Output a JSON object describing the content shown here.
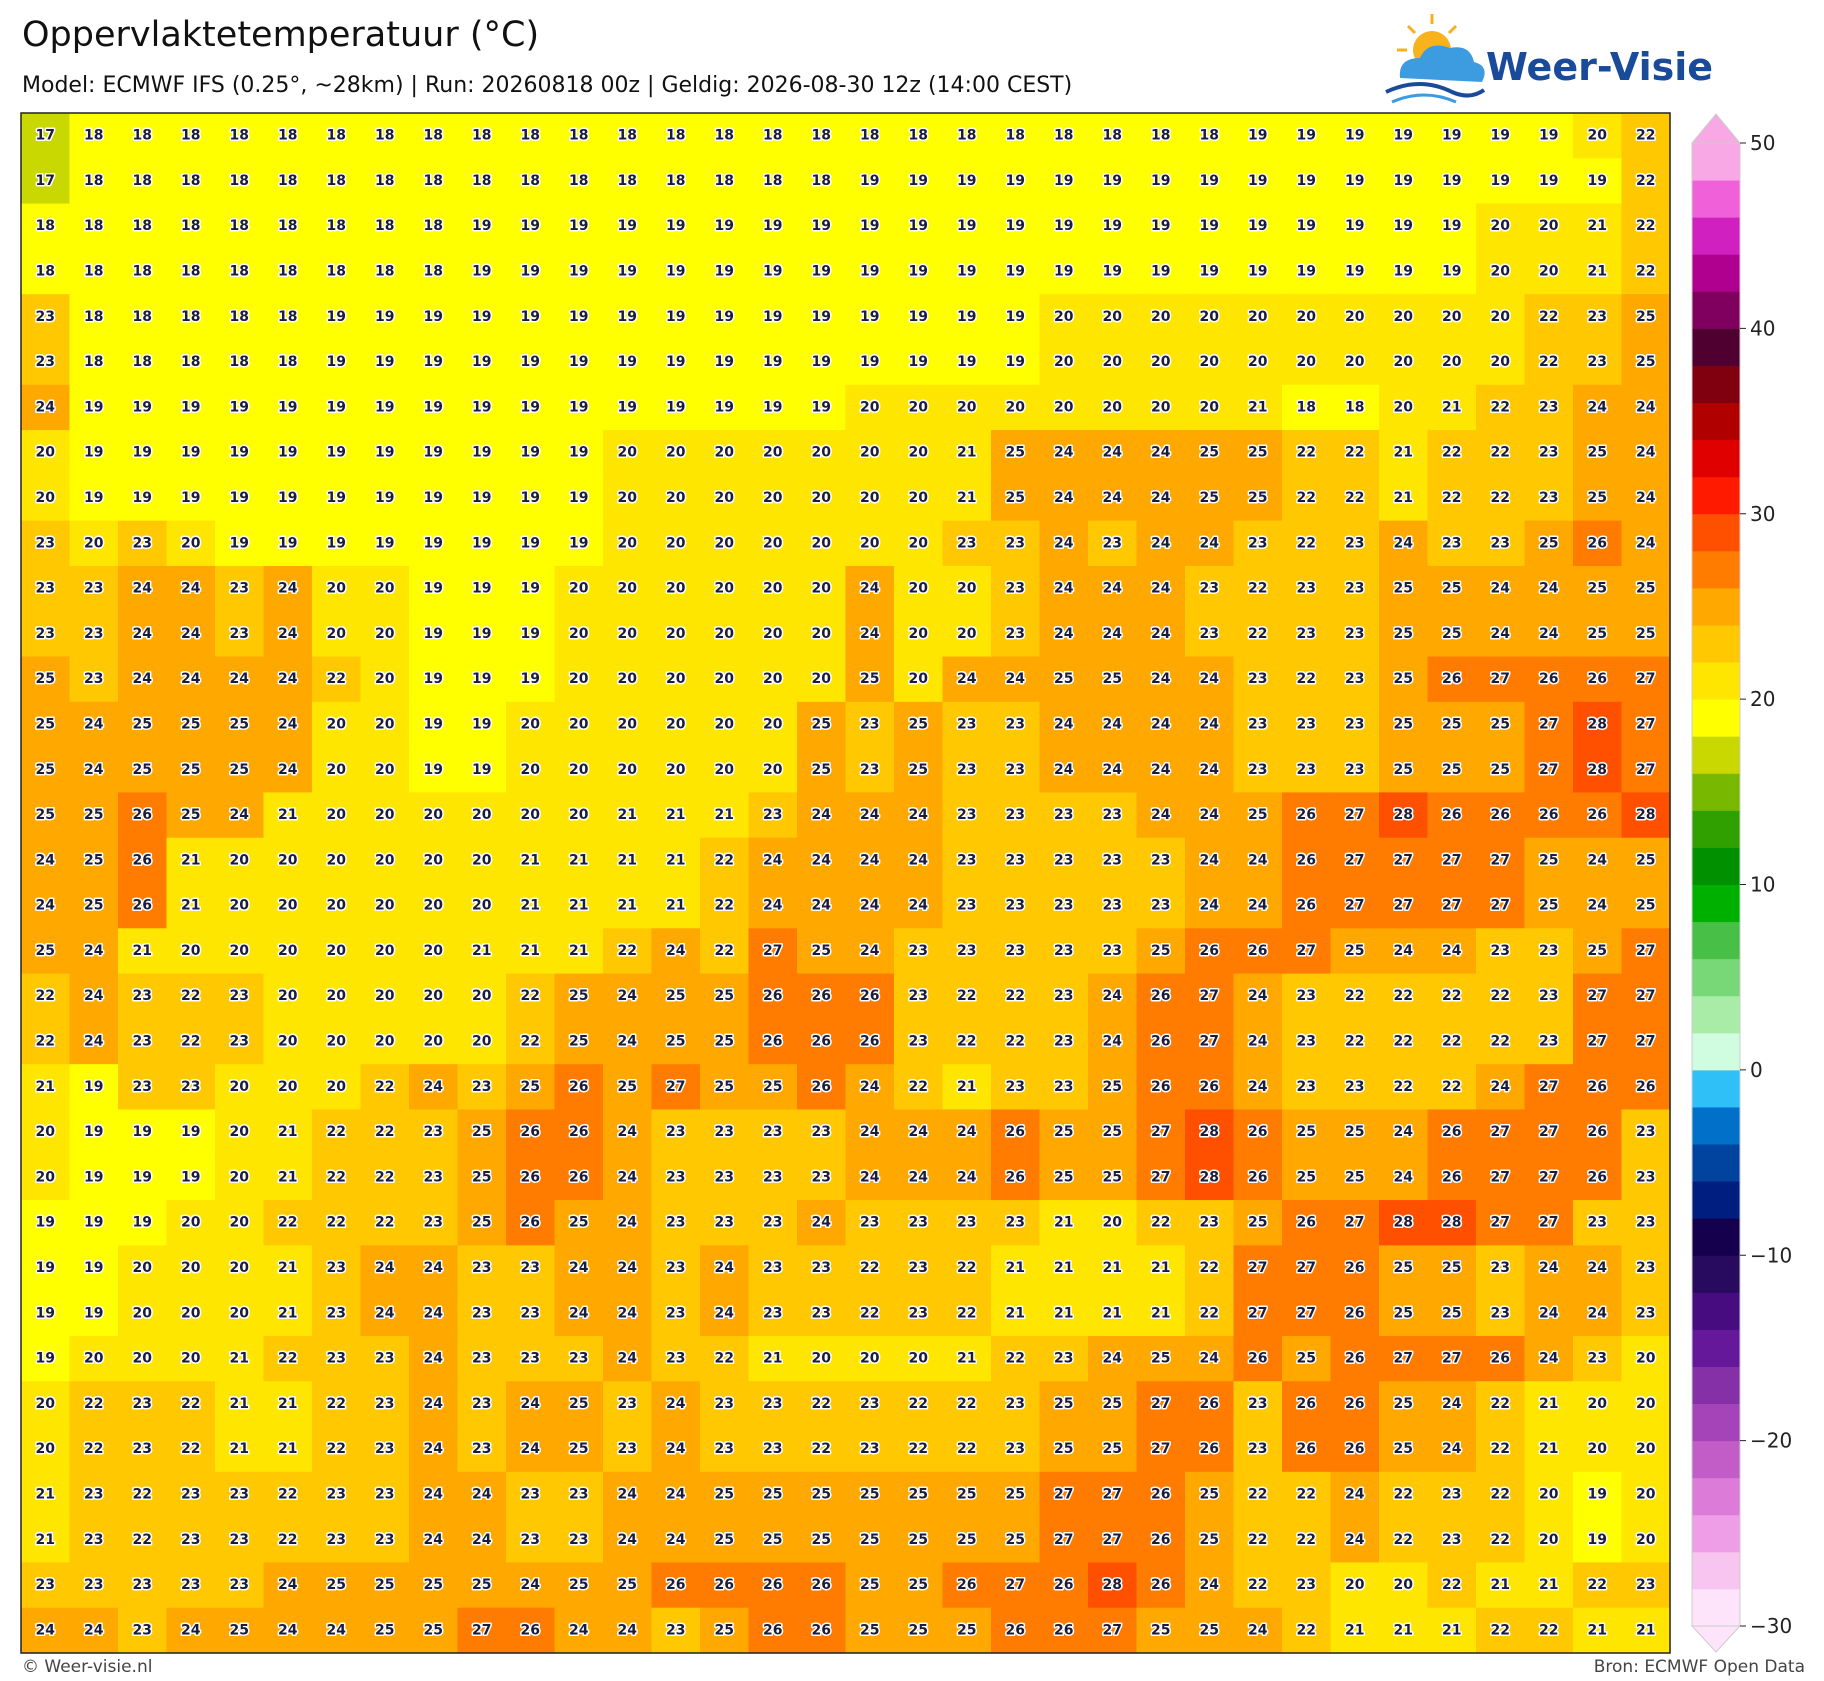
{
  "header": {
    "title": "Oppervlaktetemperatuur (°C)",
    "subtitle": "Model: ECMWF IFS (0.25°, ~28km)  |  Run: 20260818 00z  |  Geldig: 2026-08-30 12z (14:00 CEST)"
  },
  "logo": "Weer-Visie",
  "map": {
    "rows": [
      [
        17,
        18,
        18,
        18,
        18,
        18,
        18,
        18,
        18,
        18,
        18,
        18,
        18,
        18,
        18,
        18,
        18,
        18,
        18,
        18,
        18,
        18,
        18,
        18,
        18,
        19,
        19,
        19,
        19,
        19,
        19,
        19,
        20,
        22
      ],
      [
        17,
        18,
        18,
        18,
        18,
        18,
        18,
        18,
        18,
        18,
        18,
        18,
        18,
        18,
        18,
        18,
        18,
        19,
        19,
        19,
        19,
        19,
        19,
        19,
        19,
        19,
        19,
        19,
        19,
        19,
        19,
        19,
        19,
        22
      ],
      [
        18,
        18,
        18,
        18,
        18,
        18,
        18,
        18,
        18,
        19,
        19,
        19,
        19,
        19,
        19,
        19,
        19,
        19,
        19,
        19,
        19,
        19,
        19,
        19,
        19,
        19,
        19,
        19,
        19,
        19,
        20,
        20,
        21,
        22
      ],
      [
        18,
        18,
        18,
        18,
        18,
        18,
        18,
        18,
        18,
        19,
        19,
        19,
        19,
        19,
        19,
        19,
        19,
        19,
        19,
        19,
        19,
        19,
        19,
        19,
        19,
        19,
        19,
        19,
        19,
        19,
        20,
        20,
        21,
        22
      ],
      [
        23,
        18,
        18,
        18,
        18,
        18,
        19,
        19,
        19,
        19,
        19,
        19,
        19,
        19,
        19,
        19,
        19,
        19,
        19,
        19,
        19,
        20,
        20,
        20,
        20,
        20,
        20,
        20,
        20,
        20,
        20,
        22,
        23,
        25
      ],
      [
        23,
        18,
        18,
        18,
        18,
        18,
        19,
        19,
        19,
        19,
        19,
        19,
        19,
        19,
        19,
        19,
        19,
        19,
        19,
        19,
        19,
        20,
        20,
        20,
        20,
        20,
        20,
        20,
        20,
        20,
        20,
        22,
        23,
        25
      ],
      [
        24,
        19,
        19,
        19,
        19,
        19,
        19,
        19,
        19,
        19,
        19,
        19,
        19,
        19,
        19,
        19,
        19,
        20,
        20,
        20,
        20,
        20,
        20,
        20,
        20,
        21,
        18,
        18,
        20,
        21,
        22,
        23,
        24,
        24
      ],
      [
        20,
        19,
        19,
        19,
        19,
        19,
        19,
        19,
        19,
        19,
        19,
        19,
        20,
        20,
        20,
        20,
        20,
        20,
        20,
        21,
        25,
        24,
        24,
        24,
        25,
        25,
        22,
        22,
        21,
        22,
        22,
        23,
        25,
        24
      ],
      [
        20,
        19,
        19,
        19,
        19,
        19,
        19,
        19,
        19,
        19,
        19,
        19,
        20,
        20,
        20,
        20,
        20,
        20,
        20,
        21,
        25,
        24,
        24,
        24,
        25,
        25,
        22,
        22,
        21,
        22,
        22,
        23,
        25,
        24
      ],
      [
        23,
        20,
        23,
        20,
        19,
        19,
        19,
        19,
        19,
        19,
        19,
        19,
        20,
        20,
        20,
        20,
        20,
        20,
        20,
        23,
        23,
        24,
        23,
        24,
        24,
        23,
        22,
        23,
        24,
        23,
        23,
        25,
        26,
        24
      ],
      [
        23,
        23,
        24,
        24,
        23,
        24,
        20,
        20,
        19,
        19,
        19,
        20,
        20,
        20,
        20,
        20,
        20,
        24,
        20,
        20,
        23,
        24,
        24,
        24,
        23,
        22,
        23,
        23,
        25,
        25,
        24,
        24,
        25,
        25
      ],
      [
        23,
        23,
        24,
        24,
        23,
        24,
        20,
        20,
        19,
        19,
        19,
        20,
        20,
        20,
        20,
        20,
        20,
        24,
        20,
        20,
        23,
        24,
        24,
        24,
        23,
        22,
        23,
        23,
        25,
        25,
        24,
        24,
        25,
        25
      ],
      [
        25,
        23,
        24,
        24,
        24,
        24,
        22,
        20,
        19,
        19,
        19,
        20,
        20,
        20,
        20,
        20,
        20,
        25,
        20,
        24,
        24,
        25,
        25,
        24,
        24,
        23,
        22,
        23,
        25,
        26,
        27,
        26,
        26,
        27
      ],
      [
        25,
        24,
        25,
        25,
        25,
        24,
        20,
        20,
        19,
        19,
        20,
        20,
        20,
        20,
        20,
        20,
        25,
        23,
        25,
        23,
        23,
        24,
        24,
        24,
        24,
        23,
        23,
        23,
        25,
        25,
        25,
        27,
        28,
        27
      ],
      [
        25,
        24,
        25,
        25,
        25,
        24,
        20,
        20,
        19,
        19,
        20,
        20,
        20,
        20,
        20,
        20,
        25,
        23,
        25,
        23,
        23,
        24,
        24,
        24,
        24,
        23,
        23,
        23,
        25,
        25,
        25,
        27,
        28,
        27
      ],
      [
        25,
        25,
        26,
        25,
        24,
        21,
        20,
        20,
        20,
        20,
        20,
        20,
        21,
        21,
        21,
        23,
        24,
        24,
        24,
        23,
        23,
        23,
        23,
        24,
        24,
        25,
        26,
        27,
        28,
        26,
        26,
        26,
        26,
        28
      ],
      [
        24,
        25,
        26,
        21,
        20,
        20,
        20,
        20,
        20,
        20,
        21,
        21,
        21,
        21,
        22,
        24,
        24,
        24,
        24,
        23,
        23,
        23,
        23,
        23,
        24,
        24,
        26,
        27,
        27,
        27,
        27,
        25,
        24,
        25
      ],
      [
        24,
        25,
        26,
        21,
        20,
        20,
        20,
        20,
        20,
        20,
        21,
        21,
        21,
        21,
        22,
        24,
        24,
        24,
        24,
        23,
        23,
        23,
        23,
        23,
        24,
        24,
        26,
        27,
        27,
        27,
        27,
        25,
        24,
        25
      ],
      [
        25,
        24,
        21,
        20,
        20,
        20,
        20,
        20,
        20,
        21,
        21,
        21,
        22,
        24,
        22,
        27,
        25,
        24,
        23,
        23,
        23,
        23,
        23,
        25,
        26,
        26,
        27,
        25,
        24,
        24,
        23,
        23,
        25,
        27
      ],
      [
        22,
        24,
        23,
        22,
        23,
        20,
        20,
        20,
        20,
        20,
        22,
        25,
        24,
        25,
        25,
        26,
        26,
        26,
        23,
        22,
        22,
        23,
        24,
        26,
        27,
        24,
        23,
        22,
        22,
        22,
        22,
        23,
        27,
        27
      ],
      [
        22,
        24,
        23,
        22,
        23,
        20,
        20,
        20,
        20,
        20,
        22,
        25,
        24,
        25,
        25,
        26,
        26,
        26,
        23,
        22,
        22,
        23,
        24,
        26,
        27,
        24,
        23,
        22,
        22,
        22,
        22,
        23,
        27,
        27
      ],
      [
        21,
        19,
        23,
        23,
        20,
        20,
        20,
        22,
        24,
        23,
        25,
        26,
        25,
        27,
        25,
        25,
        26,
        24,
        22,
        21,
        23,
        23,
        25,
        26,
        26,
        24,
        23,
        23,
        22,
        22,
        24,
        27,
        26,
        26
      ],
      [
        20,
        19,
        19,
        19,
        20,
        21,
        22,
        22,
        23,
        25,
        26,
        26,
        24,
        23,
        23,
        23,
        23,
        24,
        24,
        24,
        26,
        25,
        25,
        27,
        28,
        26,
        25,
        25,
        24,
        26,
        27,
        27,
        26,
        23
      ],
      [
        20,
        19,
        19,
        19,
        20,
        21,
        22,
        22,
        23,
        25,
        26,
        26,
        24,
        23,
        23,
        23,
        23,
        24,
        24,
        24,
        26,
        25,
        25,
        27,
        28,
        26,
        25,
        25,
        24,
        26,
        27,
        27,
        26,
        23
      ],
      [
        19,
        19,
        19,
        20,
        20,
        22,
        22,
        22,
        23,
        25,
        26,
        25,
        24,
        23,
        23,
        23,
        24,
        23,
        23,
        23,
        23,
        21,
        20,
        22,
        23,
        25,
        26,
        27,
        28,
        28,
        27,
        27,
        23,
        23
      ],
      [
        19,
        19,
        20,
        20,
        20,
        21,
        23,
        24,
        24,
        23,
        23,
        24,
        24,
        23,
        24,
        23,
        23,
        22,
        23,
        22,
        21,
        21,
        21,
        21,
        22,
        27,
        27,
        26,
        25,
        25,
        23,
        24,
        24,
        23
      ],
      [
        19,
        19,
        20,
        20,
        20,
        21,
        23,
        24,
        24,
        23,
        23,
        24,
        24,
        23,
        24,
        23,
        23,
        22,
        23,
        22,
        21,
        21,
        21,
        21,
        22,
        27,
        27,
        26,
        25,
        25,
        23,
        24,
        24,
        23
      ],
      [
        19,
        20,
        20,
        20,
        21,
        22,
        23,
        23,
        24,
        23,
        23,
        23,
        24,
        23,
        22,
        21,
        20,
        20,
        20,
        21,
        22,
        23,
        24,
        25,
        24,
        26,
        25,
        26,
        27,
        27,
        26,
        24,
        23,
        20
      ],
      [
        20,
        22,
        23,
        22,
        21,
        21,
        22,
        23,
        24,
        23,
        24,
        25,
        23,
        24,
        23,
        23,
        22,
        23,
        22,
        22,
        23,
        25,
        25,
        27,
        26,
        23,
        26,
        26,
        25,
        24,
        22,
        21,
        20,
        20
      ],
      [
        20,
        22,
        23,
        22,
        21,
        21,
        22,
        23,
        24,
        23,
        24,
        25,
        23,
        24,
        23,
        23,
        22,
        23,
        22,
        22,
        23,
        25,
        25,
        27,
        26,
        23,
        26,
        26,
        25,
        24,
        22,
        21,
        20,
        20
      ],
      [
        21,
        23,
        22,
        23,
        23,
        22,
        23,
        23,
        24,
        24,
        23,
        23,
        24,
        24,
        25,
        25,
        25,
        25,
        25,
        25,
        25,
        27,
        27,
        26,
        25,
        22,
        22,
        24,
        22,
        23,
        22,
        20,
        19,
        20
      ],
      [
        21,
        23,
        22,
        23,
        23,
        22,
        23,
        23,
        24,
        24,
        23,
        23,
        24,
        24,
        25,
        25,
        25,
        25,
        25,
        25,
        25,
        27,
        27,
        26,
        25,
        22,
        22,
        24,
        22,
        23,
        22,
        20,
        19,
        20
      ],
      [
        23,
        23,
        23,
        23,
        23,
        24,
        25,
        25,
        25,
        25,
        24,
        25,
        25,
        26,
        26,
        26,
        26,
        25,
        25,
        26,
        27,
        26,
        28,
        26,
        24,
        22,
        23,
        20,
        20,
        22,
        21,
        21,
        22,
        23
      ],
      [
        24,
        24,
        23,
        24,
        25,
        24,
        24,
        25,
        25,
        27,
        26,
        24,
        24,
        23,
        25,
        26,
        26,
        25,
        25,
        25,
        26,
        26,
        27,
        25,
        25,
        24,
        22,
        21,
        21,
        21,
        22,
        22,
        21,
        21
      ]
    ],
    "colorbar": {
      "lim": [
        -30,
        50
      ],
      "ticks": [
        50,
        40,
        30,
        20,
        10,
        0,
        {
          "value": -10,
          "label": "−10"
        },
        {
          "value": -20,
          "label": "−20"
        },
        {
          "value": -30,
          "label": "−30"
        }
      ],
      "colors": [
        "#fde4fa",
        "#f8c4f0",
        "#ee9ee6",
        "#dc7cd8",
        "#c25cc6",
        "#a444b8",
        "#8630a8",
        "#66189a",
        "#460c80",
        "#280a5e",
        "#14004c",
        "#001e80",
        "#0044a0",
        "#0070c8",
        "#30c0f8",
        "#d0fce0",
        "#a8eca8",
        "#78d878",
        "#48c048",
        "#00b000",
        "#009000",
        "#30a000",
        "#78b800",
        "#c8d800",
        "#ffff00",
        "#ffe600",
        "#ffc800",
        "#ffa800",
        "#ff7c00",
        "#ff5000",
        "#ff1a00",
        "#e00000",
        "#b00000",
        "#800010",
        "#500030",
        "#800060",
        "#b00090",
        "#d020c0",
        "#f060d8",
        "#f8a8e4"
      ]
    }
  },
  "footer": {
    "left": "© Weer-visie.nl",
    "right": "Bron: ECMWF Open Data"
  }
}
